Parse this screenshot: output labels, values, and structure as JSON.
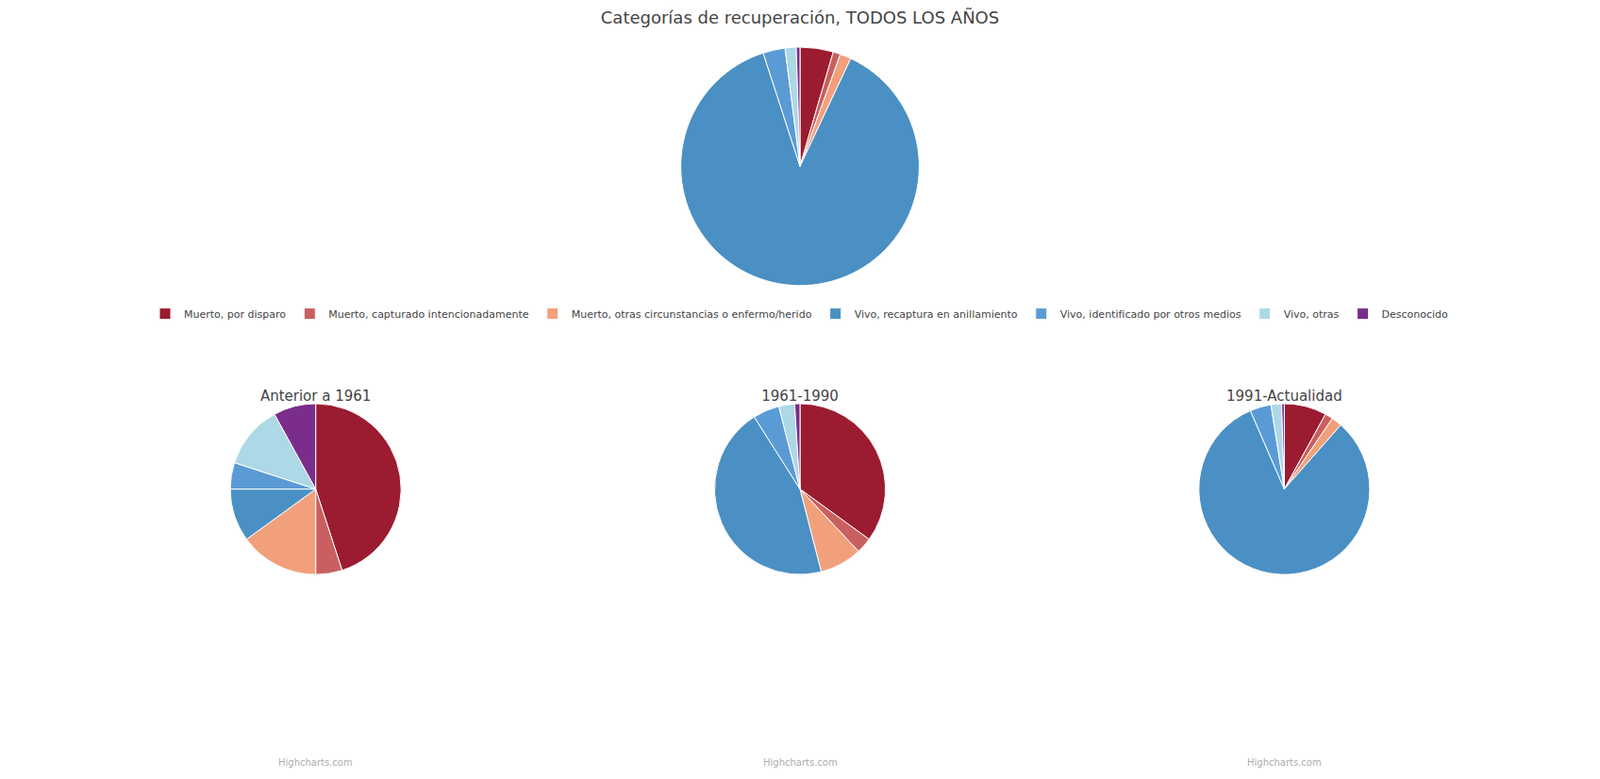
{
  "chart_data": [
    {
      "type": "pie",
      "title": "Categorías de recuperación, TODOS LOS AÑOS",
      "categories": [
        "Muerto, por disparo",
        "Muerto, capturado intencionadamente",
        "Muerto, otras circunstancias o enfermo/herido",
        "Vivo, recaptura en anillamiento",
        "Vivo, identificado por otros medios",
        "Vivo, otras",
        "Desconocido"
      ],
      "values": [
        4.5,
        1.0,
        1.5,
        88.0,
        3.0,
        1.5,
        0.5
      ],
      "colors": [
        "#9B1B30",
        "#C95F5F",
        "#F2A07B",
        "#4A90C4",
        "#5B9BD5",
        "#ADD8E6",
        "#7B2D8B"
      ],
      "legend": "bottom",
      "data_labels": false
    },
    {
      "type": "pie",
      "title": "Anterior a 1961",
      "categories": [
        "Muerto, por disparo",
        "Muerto, capturado intencionadamente",
        "Muerto, otras circunstancias o enfermo/herido",
        "Vivo, recaptura en anillamiento",
        "Vivo, identificado por otros medios",
        "Vivo, otras",
        "Desconocido"
      ],
      "values": [
        45.0,
        5.0,
        15.0,
        10.0,
        5.0,
        12.0,
        8.0
      ],
      "colors": [
        "#9B1B30",
        "#C95F5F",
        "#F2A07B",
        "#4A90C4",
        "#5B9BD5",
        "#ADD8E6",
        "#7B2D8B"
      ],
      "legend": "bottom",
      "data_labels": false,
      "annotations": [
        "Highcharts.com"
      ]
    },
    {
      "type": "pie",
      "title": "1961-1990",
      "categories": [
        "Muerto, por disparo",
        "Muerto, capturado intencionadamente",
        "Muerto, otras circunstancias o enfermo/herido",
        "Vivo, recaptura en anillamiento",
        "Vivo, identificado por otros medios",
        "Vivo, otras",
        "Desconocido"
      ],
      "values": [
        35.0,
        3.0,
        8.0,
        45.0,
        5.0,
        3.0,
        1.0
      ],
      "colors": [
        "#9B1B30",
        "#C95F5F",
        "#F2A07B",
        "#4A90C4",
        "#5B9BD5",
        "#ADD8E6",
        "#7B2D8B"
      ],
      "legend": "bottom",
      "data_labels": false,
      "annotations": [
        "Highcharts.com"
      ]
    },
    {
      "type": "pie",
      "title": "1991-Actualidad",
      "categories": [
        "Muerto, por disparo",
        "Muerto, capturado intencionadamente",
        "Muerto, otras circunstancias o enfermo/herido",
        "Vivo, recaptura en anillamiento",
        "Vivo, identificado por otros medios",
        "Vivo, otras",
        "Desconocido"
      ],
      "values": [
        8.0,
        1.5,
        2.0,
        82.0,
        4.0,
        2.0,
        0.5
      ],
      "colors": [
        "#9B1B30",
        "#C95F5F",
        "#F2A07B",
        "#4A90C4",
        "#5B9BD5",
        "#ADD8E6",
        "#7B2D8B"
      ],
      "legend": "bottom",
      "data_labels": false,
      "annotations": [
        "Highcharts.com"
      ]
    }
  ]
}
